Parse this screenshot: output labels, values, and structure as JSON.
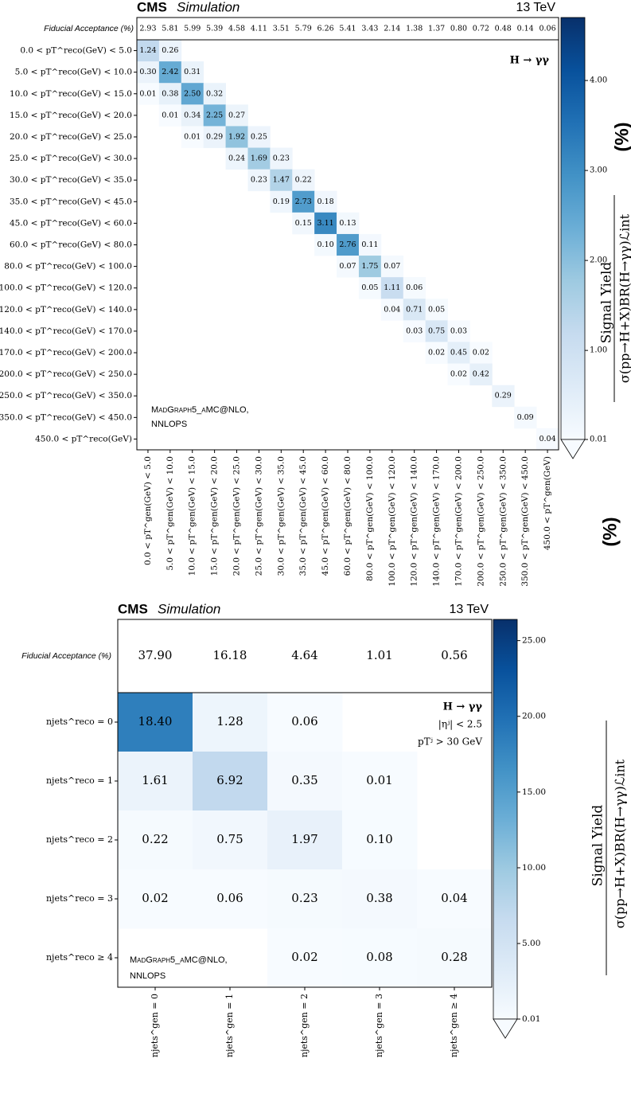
{
  "chart_data": [
    {
      "type": "heatmap",
      "title": "CMS",
      "subtitle": "Simulation",
      "energy": "13 TeV",
      "acceptance_label": "Fiducial Acceptance (%)",
      "x_categories": [
        "0.0 < pT^gen(GeV) < 5.0",
        "5.0 < pT^gen(GeV) < 10.0",
        "10.0 < pT^gen(GeV) < 15.0",
        "15.0 < pT^gen(GeV) < 20.0",
        "20.0 < pT^gen(GeV) < 25.0",
        "25.0 < pT^gen(GeV) < 30.0",
        "30.0 < pT^gen(GeV) < 35.0",
        "35.0 < pT^gen(GeV) < 45.0",
        "45.0 < pT^gen(GeV) < 60.0",
        "60.0 < pT^gen(GeV) < 80.0",
        "80.0 < pT^gen(GeV) < 100.0",
        "100.0 < pT^gen(GeV) < 120.0",
        "120.0 < pT^gen(GeV) < 140.0",
        "140.0 < pT^gen(GeV) < 170.0",
        "170.0 < pT^gen(GeV) < 200.0",
        "200.0 < pT^gen(GeV) < 250.0",
        "250.0 < pT^gen(GeV) < 350.0",
        "350.0 < pT^gen(GeV) < 450.0",
        "450.0 < pT^gen(GeV)"
      ],
      "y_categories": [
        "0.0 < pT^reco(GeV) < 5.0",
        "5.0 < pT^reco(GeV) < 10.0",
        "10.0 < pT^reco(GeV) < 15.0",
        "15.0 < pT^reco(GeV) < 20.0",
        "20.0 < pT^reco(GeV) < 25.0",
        "25.0 < pT^reco(GeV) < 30.0",
        "30.0 < pT^reco(GeV) < 35.0",
        "35.0 < pT^reco(GeV) < 45.0",
        "45.0 < pT^reco(GeV) < 60.0",
        "60.0 < pT^reco(GeV) < 80.0",
        "80.0 < pT^reco(GeV) < 100.0",
        "100.0 < pT^reco(GeV) < 120.0",
        "120.0 < pT^reco(GeV) < 140.0",
        "140.0 < pT^reco(GeV) < 170.0",
        "170.0 < pT^reco(GeV) < 200.0",
        "200.0 < pT^reco(GeV) < 250.0",
        "250.0 < pT^reco(GeV) < 350.0",
        "350.0 < pT^reco(GeV) < 450.0",
        "450.0 < pT^reco(GeV)"
      ],
      "acceptance": [
        2.93,
        5.81,
        5.99,
        5.39,
        4.58,
        4.11,
        3.51,
        5.79,
        6.26,
        5.41,
        3.43,
        2.14,
        1.38,
        1.37,
        0.8,
        0.72,
        0.48,
        0.14,
        0.06
      ],
      "acceptance_labels": [
        "2.93",
        "5.81",
        "5.99",
        "5.39",
        "4.58",
        "4.11",
        "3.51",
        "5.79",
        "6.26",
        "5.41",
        "3.43",
        "2.14",
        "1.38",
        "1.37",
        "0.80",
        "0.72",
        "0.48",
        "0.14",
        "0.06"
      ],
      "z": [
        [
          1.24,
          0.26,
          null,
          null,
          null,
          null,
          null,
          null,
          null,
          null,
          null,
          null,
          null,
          null,
          null,
          null,
          null,
          null,
          null
        ],
        [
          0.3,
          2.42,
          0.31,
          null,
          null,
          null,
          null,
          null,
          null,
          null,
          null,
          null,
          null,
          null,
          null,
          null,
          null,
          null,
          null
        ],
        [
          0.01,
          0.38,
          2.5,
          0.32,
          null,
          null,
          null,
          null,
          null,
          null,
          null,
          null,
          null,
          null,
          null,
          null,
          null,
          null,
          null
        ],
        [
          null,
          0.01,
          0.34,
          2.25,
          0.27,
          null,
          null,
          null,
          null,
          null,
          null,
          null,
          null,
          null,
          null,
          null,
          null,
          null,
          null
        ],
        [
          null,
          null,
          0.01,
          0.29,
          1.92,
          0.25,
          null,
          null,
          null,
          null,
          null,
          null,
          null,
          null,
          null,
          null,
          null,
          null,
          null
        ],
        [
          null,
          null,
          null,
          null,
          0.24,
          1.69,
          0.23,
          null,
          null,
          null,
          null,
          null,
          null,
          null,
          null,
          null,
          null,
          null,
          null
        ],
        [
          null,
          null,
          null,
          null,
          null,
          0.23,
          1.47,
          0.22,
          null,
          null,
          null,
          null,
          null,
          null,
          null,
          null,
          null,
          null,
          null
        ],
        [
          null,
          null,
          null,
          null,
          null,
          null,
          0.19,
          2.73,
          0.18,
          null,
          null,
          null,
          null,
          null,
          null,
          null,
          null,
          null,
          null
        ],
        [
          null,
          null,
          null,
          null,
          null,
          null,
          null,
          0.15,
          3.11,
          0.13,
          null,
          null,
          null,
          null,
          null,
          null,
          null,
          null,
          null
        ],
        [
          null,
          null,
          null,
          null,
          null,
          null,
          null,
          null,
          0.1,
          2.76,
          0.11,
          null,
          null,
          null,
          null,
          null,
          null,
          null,
          null
        ],
        [
          null,
          null,
          null,
          null,
          null,
          null,
          null,
          null,
          null,
          0.07,
          1.75,
          0.07,
          null,
          null,
          null,
          null,
          null,
          null,
          null
        ],
        [
          null,
          null,
          null,
          null,
          null,
          null,
          null,
          null,
          null,
          null,
          0.05,
          1.11,
          0.06,
          null,
          null,
          null,
          null,
          null,
          null
        ],
        [
          null,
          null,
          null,
          null,
          null,
          null,
          null,
          null,
          null,
          null,
          null,
          0.04,
          0.71,
          0.05,
          null,
          null,
          null,
          null,
          null
        ],
        [
          null,
          null,
          null,
          null,
          null,
          null,
          null,
          null,
          null,
          null,
          null,
          null,
          0.03,
          0.75,
          0.03,
          null,
          null,
          null,
          null
        ],
        [
          null,
          null,
          null,
          null,
          null,
          null,
          null,
          null,
          null,
          null,
          null,
          null,
          null,
          0.02,
          0.45,
          0.02,
          null,
          null,
          null
        ],
        [
          null,
          null,
          null,
          null,
          null,
          null,
          null,
          null,
          null,
          null,
          null,
          null,
          null,
          null,
          0.02,
          0.42,
          null,
          null,
          null
        ],
        [
          null,
          null,
          null,
          null,
          null,
          null,
          null,
          null,
          null,
          null,
          null,
          null,
          null,
          null,
          null,
          null,
          0.29,
          null,
          null
        ],
        [
          null,
          null,
          null,
          null,
          null,
          null,
          null,
          null,
          null,
          null,
          null,
          null,
          null,
          null,
          null,
          null,
          null,
          0.09,
          null
        ],
        [
          null,
          null,
          null,
          null,
          null,
          null,
          null,
          null,
          null,
          null,
          null,
          null,
          null,
          null,
          null,
          null,
          null,
          null,
          0.04
        ]
      ],
      "z_labels": [
        [
          "1.24",
          "0.26",
          null,
          null,
          null,
          null,
          null,
          null,
          null,
          null,
          null,
          null,
          null,
          null,
          null,
          null,
          null,
          null,
          null
        ],
        [
          "0.30",
          "2.42",
          "0.31",
          null,
          null,
          null,
          null,
          null,
          null,
          null,
          null,
          null,
          null,
          null,
          null,
          null,
          null,
          null,
          null
        ],
        [
          "0.01",
          "0.38",
          "2.50",
          "0.32",
          null,
          null,
          null,
          null,
          null,
          null,
          null,
          null,
          null,
          null,
          null,
          null,
          null,
          null,
          null
        ],
        [
          null,
          "0.01",
          "0.34",
          "2.25",
          "0.27",
          null,
          null,
          null,
          null,
          null,
          null,
          null,
          null,
          null,
          null,
          null,
          null,
          null,
          null
        ],
        [
          null,
          null,
          "0.01",
          "0.29",
          "1.92",
          "0.25",
          null,
          null,
          null,
          null,
          null,
          null,
          null,
          null,
          null,
          null,
          null,
          null,
          null
        ],
        [
          null,
          null,
          null,
          null,
          "0.24",
          "1.69",
          "0.23",
          null,
          null,
          null,
          null,
          null,
          null,
          null,
          null,
          null,
          null,
          null,
          null
        ],
        [
          null,
          null,
          null,
          null,
          null,
          "0.23",
          "1.47",
          "0.22",
          null,
          null,
          null,
          null,
          null,
          null,
          null,
          null,
          null,
          null,
          null
        ],
        [
          null,
          null,
          null,
          null,
          null,
          null,
          "0.19",
          "2.73",
          "0.18",
          null,
          null,
          null,
          null,
          null,
          null,
          null,
          null,
          null,
          null
        ],
        [
          null,
          null,
          null,
          null,
          null,
          null,
          null,
          "0.15",
          "3.11",
          "0.13",
          null,
          null,
          null,
          null,
          null,
          null,
          null,
          null,
          null
        ],
        [
          null,
          null,
          null,
          null,
          null,
          null,
          null,
          null,
          "0.10",
          "2.76",
          "0.11",
          null,
          null,
          null,
          null,
          null,
          null,
          null,
          null
        ],
        [
          null,
          null,
          null,
          null,
          null,
          null,
          null,
          null,
          null,
          "0.07",
          "1.75",
          "0.07",
          null,
          null,
          null,
          null,
          null,
          null,
          null
        ],
        [
          null,
          null,
          null,
          null,
          null,
          null,
          null,
          null,
          null,
          null,
          "0.05",
          "1.11",
          "0.06",
          null,
          null,
          null,
          null,
          null,
          null
        ],
        [
          null,
          null,
          null,
          null,
          null,
          null,
          null,
          null,
          null,
          null,
          null,
          "0.04",
          "0.71",
          "0.05",
          null,
          null,
          null,
          null,
          null
        ],
        [
          null,
          null,
          null,
          null,
          null,
          null,
          null,
          null,
          null,
          null,
          null,
          null,
          "0.03",
          "0.75",
          "0.03",
          null,
          null,
          null,
          null
        ],
        [
          null,
          null,
          null,
          null,
          null,
          null,
          null,
          null,
          null,
          null,
          null,
          null,
          null,
          "0.02",
          "0.45",
          "0.02",
          null,
          null,
          null
        ],
        [
          null,
          null,
          null,
          null,
          null,
          null,
          null,
          null,
          null,
          null,
          null,
          null,
          null,
          null,
          "0.02",
          "0.42",
          null,
          null,
          null
        ],
        [
          null,
          null,
          null,
          null,
          null,
          null,
          null,
          null,
          null,
          null,
          null,
          null,
          null,
          null,
          null,
          null,
          "0.29",
          null,
          null
        ],
        [
          null,
          null,
          null,
          null,
          null,
          null,
          null,
          null,
          null,
          null,
          null,
          null,
          null,
          null,
          null,
          null,
          null,
          "0.09",
          null
        ],
        [
          null,
          null,
          null,
          null,
          null,
          null,
          null,
          null,
          null,
          null,
          null,
          null,
          null,
          null,
          null,
          null,
          null,
          null,
          "0.04"
        ]
      ],
      "zlim": [
        0.01,
        4.7
      ],
      "zticks": [
        0.01,
        {
          "value": 1,
          "label": "1.00"
        },
        {
          "value": 2,
          "label": "2.00"
        },
        {
          "value": 3,
          "label": "3.00"
        },
        {
          "value": 4,
          "label": "4.00"
        }
      ],
      "colormap": [
        "#f7fbff",
        "#deebf7",
        "#c6dbef",
        "#9ecae1",
        "#6baed6",
        "#4292c6",
        "#2171b5",
        "#08519c",
        "#08306b"
      ],
      "colorbar_label": [
        "Signal Yield",
        "σ(pp→H+X)BR(H→γγ)ℒint",
        "(%)"
      ],
      "annotations": [
        "H → γγ"
      ],
      "generator": [
        "MadGraph5_aMC@NLO,",
        "NNLOPS"
      ]
    },
    {
      "type": "heatmap",
      "title": "CMS",
      "subtitle": "Simulation",
      "energy": "13 TeV",
      "acceptance_label": "Fiducial Acceptance (%)",
      "x_categories": [
        "njets^gen = 0",
        "njets^gen = 1",
        "njets^gen = 2",
        "njets^gen = 3",
        "njets^gen ≥ 4"
      ],
      "y_categories": [
        "njets^reco = 0",
        "njets^reco = 1",
        "njets^reco = 2",
        "njets^reco = 3",
        "njets^reco ≥ 4"
      ],
      "acceptance": [
        37.9,
        16.18,
        4.64,
        1.01,
        0.56
      ],
      "acceptance_labels": [
        "37.90",
        "16.18",
        "4.64",
        "1.01",
        "0.56"
      ],
      "z": [
        [
          18.4,
          1.28,
          0.06,
          null,
          null
        ],
        [
          1.61,
          6.92,
          0.35,
          0.01,
          null
        ],
        [
          0.22,
          0.75,
          1.97,
          0.1,
          null
        ],
        [
          0.02,
          0.06,
          0.23,
          0.38,
          0.04
        ],
        [
          null,
          null,
          0.02,
          0.08,
          0.28
        ]
      ],
      "z_labels": [
        [
          "18.40",
          "1.28",
          "0.06",
          null,
          null
        ],
        [
          "1.61",
          "6.92",
          "0.35",
          "0.01",
          null
        ],
        [
          "0.22",
          "0.75",
          "1.97",
          "0.10",
          null
        ],
        [
          "0.02",
          "0.06",
          "0.23",
          "0.38",
          "0.04"
        ],
        [
          null,
          null,
          "0.02",
          "0.08",
          "0.28"
        ]
      ],
      "zlim": [
        0.01,
        26.4
      ],
      "zticks": [
        0.01,
        {
          "value": 5,
          "label": "5.00"
        },
        {
          "value": 10,
          "label": "10.00"
        },
        {
          "value": 15,
          "label": "15.00"
        },
        {
          "value": 20,
          "label": "20.00"
        },
        {
          "value": 25,
          "label": "25.00"
        }
      ],
      "colormap": [
        "#f7fbff",
        "#deebf7",
        "#c6dbef",
        "#9ecae1",
        "#6baed6",
        "#4292c6",
        "#2171b5",
        "#08519c",
        "#08306b"
      ],
      "colorbar_label": [
        "Signal Yield",
        "σ(pp→H+X)BR(H→γγ)ℒint",
        "(%)"
      ],
      "annotations": [
        "H → γγ",
        "|ηʲ| < 2.5",
        "pTʲ > 30 GeV"
      ],
      "generator": [
        "MadGraph5_aMC@NLO,",
        "NNLOPS"
      ]
    }
  ]
}
